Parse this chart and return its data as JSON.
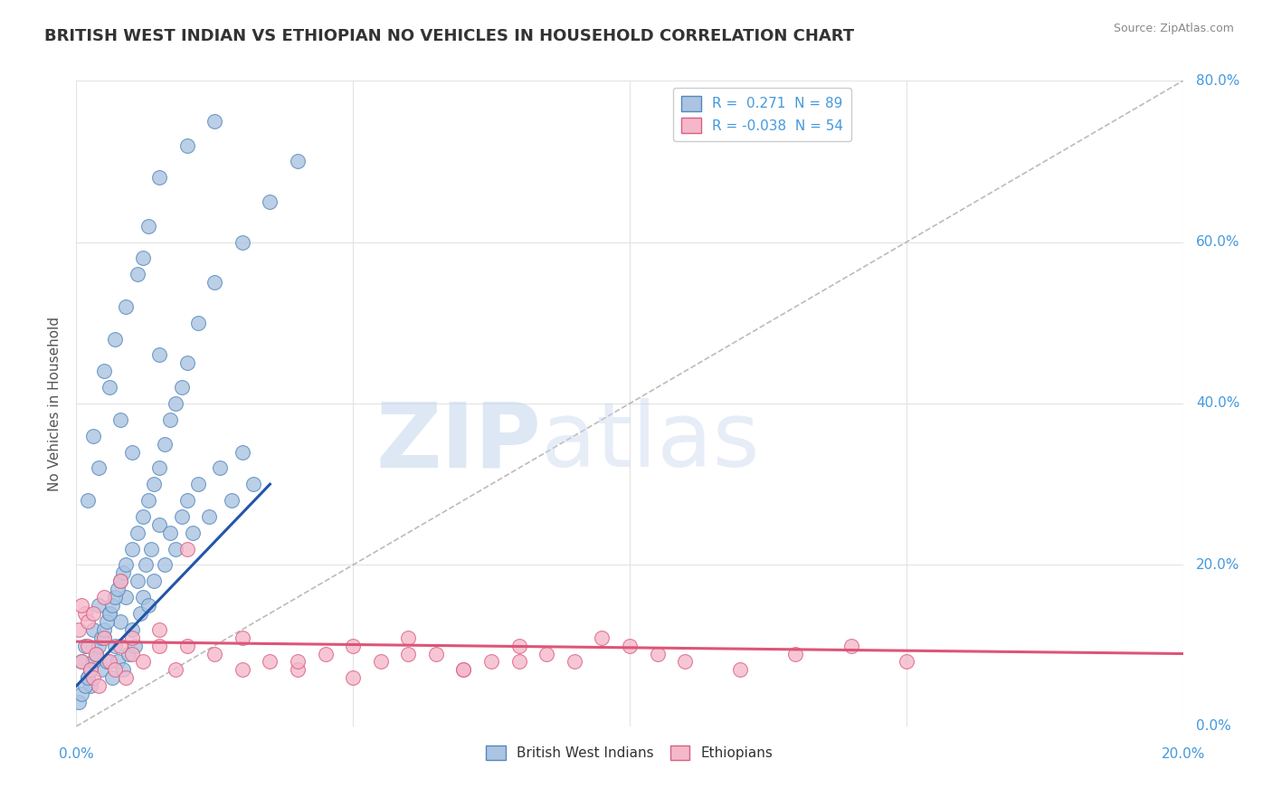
{
  "title": "BRITISH WEST INDIAN VS ETHIOPIAN NO VEHICLES IN HOUSEHOLD CORRELATION CHART",
  "source_text": "Source: ZipAtlas.com",
  "ylabel": "No Vehicles in Household",
  "xlim": [
    0.0,
    20.0
  ],
  "ylim": [
    0.0,
    80.0
  ],
  "ytick_labels": [
    "0.0%",
    "20.0%",
    "40.0%",
    "60.0%",
    "80.0%"
  ],
  "ytick_values": [
    0.0,
    20.0,
    40.0,
    60.0,
    80.0
  ],
  "xtick_labels": [
    "0.0%",
    "",
    "",
    "",
    "20.0%"
  ],
  "xtick_values": [
    0.0,
    5.0,
    10.0,
    15.0,
    20.0
  ],
  "blue_R": 0.271,
  "blue_N": 89,
  "pink_R": -0.038,
  "pink_N": 54,
  "blue_color": "#aac4e2",
  "blue_edge": "#5588bb",
  "pink_color": "#f5b8cb",
  "pink_edge": "#d86080",
  "blue_line_color": "#2255aa",
  "pink_line_color": "#dd5577",
  "diag_color": "#aaaaaa",
  "legend_blue_label": "British West Indians",
  "legend_pink_label": "Ethiopians",
  "watermark_zip": "ZIP",
  "watermark_atlas": "atlas",
  "title_color": "#333333",
  "axis_label_color": "#4499dd",
  "blue_scatter_x": [
    0.1,
    0.15,
    0.2,
    0.25,
    0.3,
    0.35,
    0.4,
    0.45,
    0.5,
    0.55,
    0.6,
    0.65,
    0.7,
    0.75,
    0.8,
    0.85,
    0.9,
    0.95,
    1.0,
    1.05,
    1.1,
    1.15,
    1.2,
    1.25,
    1.3,
    1.35,
    1.4,
    1.5,
    1.6,
    1.7,
    1.8,
    1.9,
    2.0,
    2.1,
    2.2,
    2.4,
    2.6,
    2.8,
    3.0,
    3.2,
    0.05,
    0.1,
    0.15,
    0.2,
    0.25,
    0.3,
    0.35,
    0.4,
    0.45,
    0.5,
    0.55,
    0.6,
    0.65,
    0.7,
    0.75,
    0.8,
    0.85,
    0.9,
    1.0,
    1.1,
    1.2,
    1.3,
    1.4,
    1.5,
    1.6,
    1.7,
    1.8,
    1.9,
    2.0,
    2.2,
    2.5,
    3.0,
    3.5,
    4.0,
    0.3,
    0.5,
    0.7,
    0.9,
    1.1,
    1.3,
    1.5,
    2.0,
    2.5,
    1.0,
    1.5,
    0.6,
    0.8,
    1.2,
    0.4,
    0.2
  ],
  "blue_scatter_y": [
    8.0,
    10.0,
    6.0,
    5.0,
    12.0,
    9.0,
    15.0,
    7.0,
    11.0,
    8.0,
    14.0,
    6.0,
    10.0,
    8.0,
    13.0,
    7.0,
    16.0,
    9.0,
    12.0,
    10.0,
    18.0,
    14.0,
    16.0,
    20.0,
    15.0,
    22.0,
    18.0,
    25.0,
    20.0,
    24.0,
    22.0,
    26.0,
    28.0,
    24.0,
    30.0,
    26.0,
    32.0,
    28.0,
    34.0,
    30.0,
    3.0,
    4.0,
    5.0,
    6.0,
    7.0,
    8.0,
    9.0,
    10.0,
    11.0,
    12.0,
    13.0,
    14.0,
    15.0,
    16.0,
    17.0,
    18.0,
    19.0,
    20.0,
    22.0,
    24.0,
    26.0,
    28.0,
    30.0,
    32.0,
    35.0,
    38.0,
    40.0,
    42.0,
    45.0,
    50.0,
    55.0,
    60.0,
    65.0,
    70.0,
    36.0,
    44.0,
    48.0,
    52.0,
    56.0,
    62.0,
    68.0,
    72.0,
    75.0,
    34.0,
    46.0,
    42.0,
    38.0,
    58.0,
    32.0,
    28.0
  ],
  "pink_scatter_x": [
    0.05,
    0.1,
    0.15,
    0.2,
    0.25,
    0.3,
    0.35,
    0.4,
    0.5,
    0.6,
    0.7,
    0.8,
    0.9,
    1.0,
    1.2,
    1.5,
    1.8,
    2.0,
    2.5,
    3.0,
    3.5,
    4.0,
    4.5,
    5.0,
    5.5,
    6.0,
    6.5,
    7.0,
    7.5,
    8.0,
    8.5,
    9.0,
    9.5,
    10.0,
    10.5,
    11.0,
    12.0,
    13.0,
    14.0,
    15.0,
    0.1,
    0.2,
    0.3,
    0.5,
    0.8,
    1.0,
    1.5,
    2.0,
    3.0,
    4.0,
    5.0,
    6.0,
    7.0,
    8.0
  ],
  "pink_scatter_y": [
    12.0,
    8.0,
    14.0,
    10.0,
    7.0,
    6.0,
    9.0,
    5.0,
    11.0,
    8.0,
    7.0,
    10.0,
    6.0,
    9.0,
    8.0,
    12.0,
    7.0,
    10.0,
    9.0,
    11.0,
    8.0,
    7.0,
    9.0,
    10.0,
    8.0,
    11.0,
    9.0,
    7.0,
    8.0,
    10.0,
    9.0,
    8.0,
    11.0,
    10.0,
    9.0,
    8.0,
    7.0,
    9.0,
    10.0,
    8.0,
    15.0,
    13.0,
    14.0,
    16.0,
    18.0,
    11.0,
    10.0,
    22.0,
    7.0,
    8.0,
    6.0,
    9.0,
    7.0,
    8.0
  ],
  "blue_line_x": [
    0.0,
    3.5
  ],
  "blue_line_y": [
    5.0,
    30.0
  ],
  "pink_line_x": [
    0.0,
    20.0
  ],
  "pink_line_y": [
    10.5,
    9.0
  ]
}
